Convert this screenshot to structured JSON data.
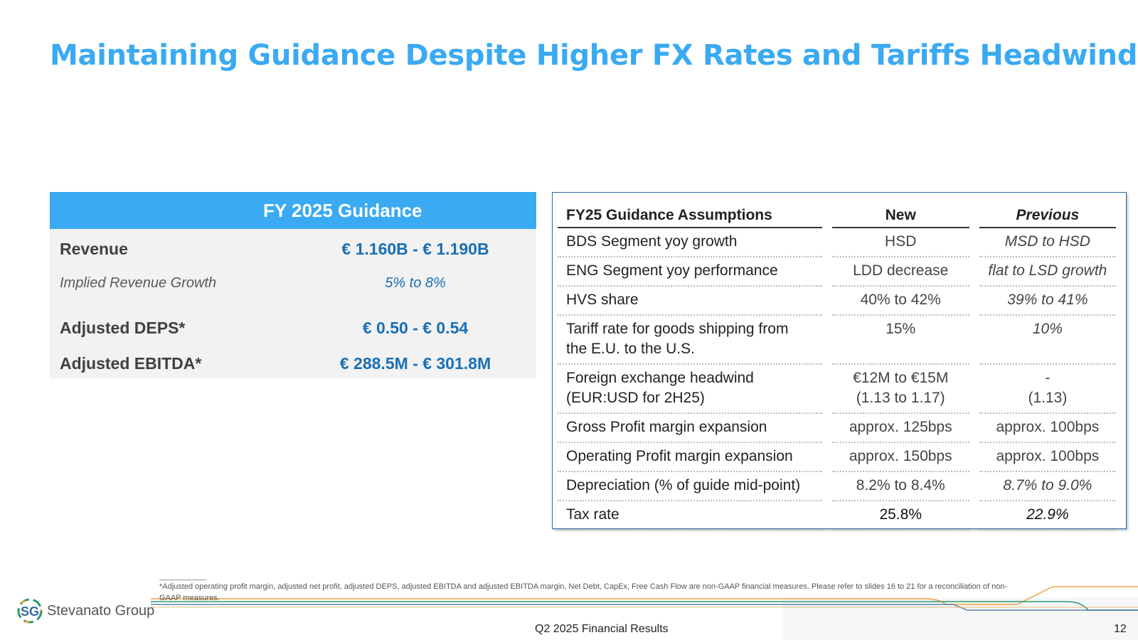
{
  "title": "Maintaining Guidance Despite Higher FX Rates and Tariffs Headwinds",
  "guidance": {
    "header": "FY 2025 Guidance",
    "rows": [
      {
        "label": "Revenue",
        "value": "€ 1.160B - € 1.190B"
      },
      {
        "label": "Implied Revenue Growth",
        "value": "5% to 8%"
      },
      {
        "label": "Adjusted DEPS*",
        "value": "€ 0.50 - € 0.54"
      },
      {
        "label": "Adjusted EBITDA*",
        "value": "€ 288.5M - € 301.8M"
      }
    ]
  },
  "assumptions": {
    "headers": [
      "FY25 Guidance Assumptions",
      "New",
      "Previous"
    ],
    "rows": [
      {
        "label": "BDS Segment yoy growth",
        "new": "HSD",
        "previous": "MSD to HSD"
      },
      {
        "label": "ENG Segment yoy performance",
        "new": "LDD decrease",
        "previous": "flat to LSD growth"
      },
      {
        "label": "HVS share",
        "new": "40% to 42%",
        "previous": "39% to 41%"
      },
      {
        "label": "Tariff rate for goods shipping from\nthe E.U. to the U.S.",
        "new": "15%",
        "previous": "10%"
      },
      {
        "label": "Foreign exchange headwind\n(EUR:USD for 2H25)",
        "new": "€12M to €15M\n(1.13 to 1.17)",
        "previous": "-\n(1.13)"
      },
      {
        "label": "Gross Profit margin expansion",
        "new": "approx. 125bps",
        "previous": "approx. 100bps"
      },
      {
        "label": "Operating Profit margin expansion",
        "new": "approx. 150bps",
        "previous": "approx. 100bps"
      },
      {
        "label": "Depreciation (% of guide mid-point)",
        "new": "8.2% to 8.4%",
        "previous": "8.7% to 9.0%"
      },
      {
        "label": "Tax rate",
        "new": "25.8%",
        "previous": "22.9%"
      }
    ]
  },
  "footnote": "*Adjusted operating profit margin, adjusted net profit, adjusted DEPS, adjusted EBITDA and adjusted EBITDA margin, Net Debt, CapEx, Free Cash Flow are non-GAAP financial measures. Please refer to slides 16 to 21 for a reconciliation of non-GAAP measures.",
  "footer": {
    "logo_mark": "SG",
    "logo_text": "Stevanato Group",
    "center": "Q2 2025 Financial Results",
    "page": "12"
  },
  "colors": {
    "title": "#3aaaf2",
    "accent_blue": "#1a6fb4",
    "header_bg": "#3aaaf2"
  }
}
